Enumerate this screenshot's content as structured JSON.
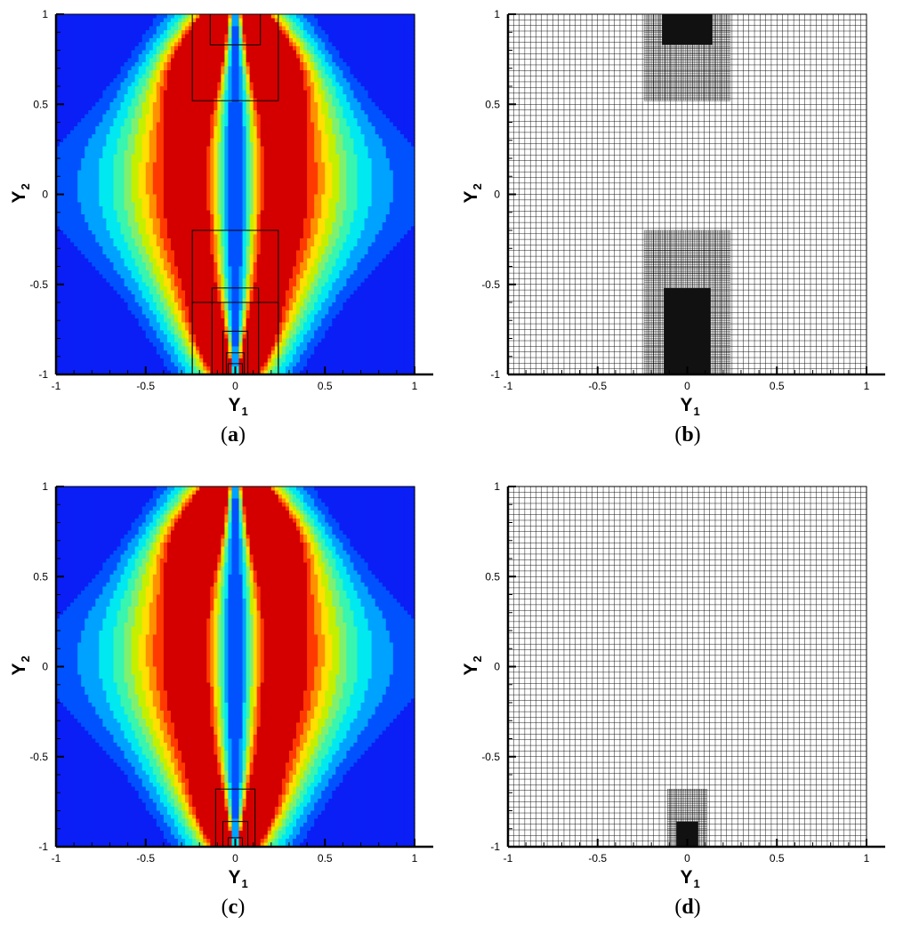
{
  "figure": {
    "panels": [
      {
        "id": "a",
        "caption_open": "(",
        "caption_letter": "a",
        "caption_close": ")",
        "kind": "contour",
        "boxes": "a"
      },
      {
        "id": "b",
        "caption_open": "(",
        "caption_letter": "b",
        "caption_close": ")",
        "kind": "mesh",
        "boxes": "b"
      },
      {
        "id": "c",
        "caption_open": "(",
        "caption_letter": "c",
        "caption_close": ")",
        "kind": "contour",
        "boxes": "c"
      },
      {
        "id": "d",
        "caption_open": "(",
        "caption_letter": "d",
        "caption_close": ")",
        "kind": "mesh",
        "boxes": "d"
      }
    ],
    "axes": {
      "x_label_main": "Y",
      "x_label_sub": "1",
      "y_label_main": "Y",
      "y_label_sub": "2",
      "x_ticks": [
        "-1",
        "-0.5",
        "0",
        "0.5",
        "1"
      ],
      "y_ticks": [
        "1",
        "0.5",
        "0",
        "-0.5",
        "-1"
      ],
      "xlim": [
        -1,
        1.1
      ],
      "ylim": [
        -1,
        1
      ]
    },
    "contour_colors": [
      "#0a1ff5",
      "#0052ff",
      "#00a2ff",
      "#00e8f0",
      "#38f5b0",
      "#7ff070",
      "#c4f000",
      "#ffe000",
      "#ff9000",
      "#ff3a00",
      "#d40000"
    ],
    "mesh_color": "#000000"
  }
}
